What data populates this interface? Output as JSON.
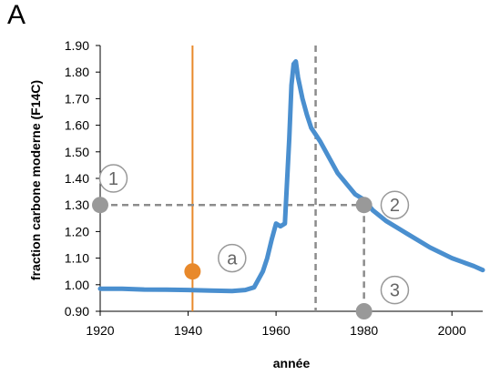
{
  "panel_label": "A",
  "chart_data": {
    "type": "line",
    "xlabel": "année",
    "ylabel": "fraction carbone moderne (F14C)",
    "xlim": [
      1920,
      2007
    ],
    "ylim": [
      0.9,
      1.9
    ],
    "x_ticks": [
      "1920",
      "1940",
      "1960",
      "1980",
      "2000"
    ],
    "y_ticks": [
      "0.90",
      "1.00",
      "1.10",
      "1.20",
      "1.30",
      "1.40",
      "1.50",
      "1.60",
      "1.70",
      "1.80",
      "1.90"
    ],
    "grid": false,
    "series": [
      {
        "color": "#4a8fcf",
        "x": [
          1920,
          1925,
          1930,
          1935,
          1940,
          1945,
          1950,
          1953,
          1955,
          1957,
          1958,
          1959,
          1960,
          1961,
          1962,
          1963,
          1963.5,
          1964,
          1964.5,
          1965,
          1966,
          1967,
          1968,
          1969,
          1970,
          1972,
          1974,
          1976,
          1978,
          1980,
          1982,
          1985,
          1990,
          1995,
          2000,
          2005,
          2007
        ],
        "y": [
          0.985,
          0.985,
          0.982,
          0.981,
          0.98,
          0.978,
          0.976,
          0.98,
          0.99,
          1.05,
          1.1,
          1.17,
          1.23,
          1.22,
          1.23,
          1.55,
          1.75,
          1.83,
          1.84,
          1.78,
          1.7,
          1.64,
          1.59,
          1.565,
          1.54,
          1.48,
          1.42,
          1.38,
          1.34,
          1.32,
          1.28,
          1.24,
          1.19,
          1.14,
          1.1,
          1.07,
          1.055
        ]
      }
    ],
    "reference_lines": [
      {
        "orientation": "vertical",
        "x": 1941,
        "color": "#e8892b",
        "style": "solid"
      },
      {
        "orientation": "vertical",
        "x": 1969,
        "color": "#8c8c8c",
        "style": "dashed"
      },
      {
        "orientation": "horizontal",
        "y": 1.3,
        "x_from": 1920,
        "x_to": 1980,
        "color": "#8c8c8c",
        "style": "dashed"
      },
      {
        "orientation": "vertical",
        "x": 1980,
        "y_from": 0.9,
        "y_to": 1.3,
        "color": "#8c8c8c",
        "style": "dashed"
      }
    ],
    "markers": [
      {
        "x": 1920,
        "y": 1.3,
        "color": "#999999"
      },
      {
        "x": 1980,
        "y": 1.3,
        "color": "#999999"
      },
      {
        "x": 1980,
        "y": 0.9,
        "color": "#999999"
      },
      {
        "x": 1941,
        "y": 1.05,
        "color": "#e8892b"
      }
    ],
    "annotations": [
      {
        "label": "1",
        "x": 1923,
        "y": 1.4
      },
      {
        "label": "2",
        "x": 1987,
        "y": 1.3
      },
      {
        "label": "3",
        "x": 1987,
        "y": 0.98
      },
      {
        "label": "a",
        "x": 1950,
        "y": 1.1
      }
    ]
  }
}
